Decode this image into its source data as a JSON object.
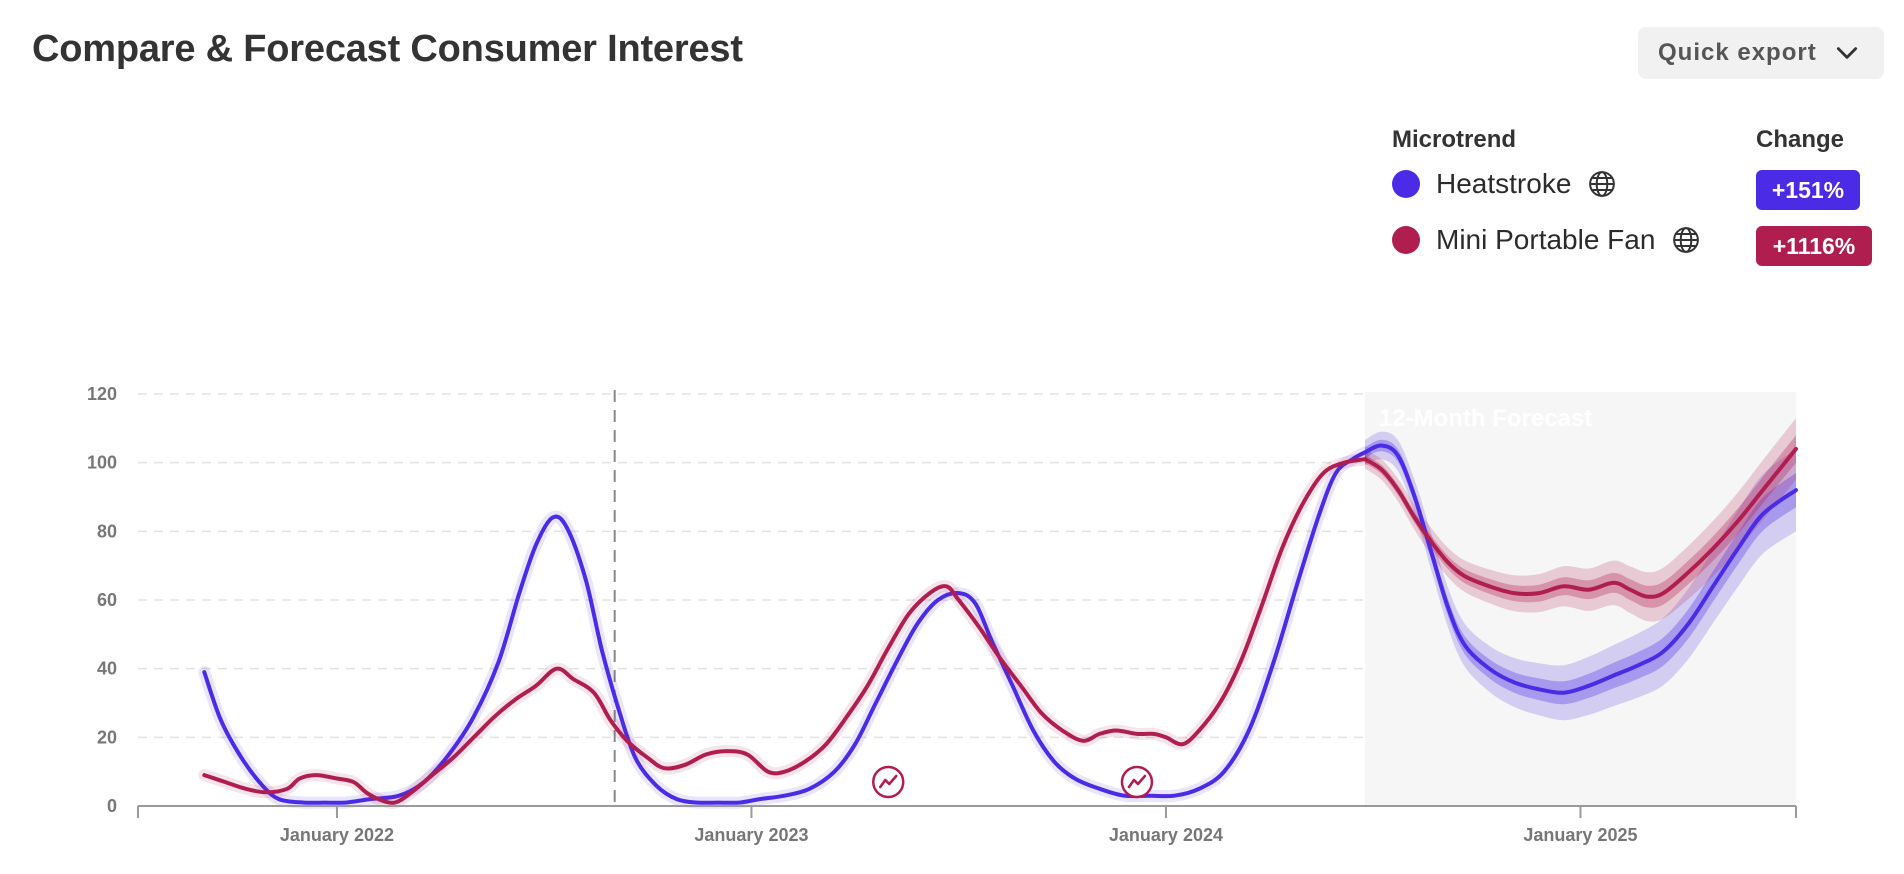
{
  "header": {
    "title": "Compare & Forecast Consumer Interest",
    "export_label": "Quick export"
  },
  "legend": {
    "microtrend_heading": "Microtrend",
    "change_heading": "Change",
    "items": [
      {
        "name": "Heatstroke",
        "change": "+151%",
        "color": "#4b2be6",
        "icon": "globe-icon"
      },
      {
        "name": "Mini Portable Fan",
        "change": "+1116%",
        "color": "#b01e50",
        "icon": "globe-icon"
      }
    ]
  },
  "chart_data": {
    "type": "line",
    "forecast_label": "12-Month Forecast",
    "forecast_start": 2024.48,
    "reference_line_x": 2022.67,
    "x_range": [
      2021.52,
      2025.52
    ],
    "ylim": [
      0,
      120
    ],
    "y_ticks": [
      0,
      20,
      40,
      60,
      80,
      100,
      120
    ],
    "x_ticks": [
      {
        "value": 2022.0,
        "label": "January 2022"
      },
      {
        "value": 2023.0,
        "label": "January 2023"
      },
      {
        "value": 2024.0,
        "label": "January 2024"
      },
      {
        "value": 2025.0,
        "label": "January 2025"
      }
    ],
    "grid": "horizontal dashed",
    "series": [
      {
        "name": "Heatstroke",
        "color": "#4b2be6",
        "points": [
          [
            2021.68,
            39
          ],
          [
            2021.72,
            25
          ],
          [
            2021.77,
            14
          ],
          [
            2021.82,
            6
          ],
          [
            2021.86,
            2
          ],
          [
            2021.92,
            1
          ],
          [
            2021.97,
            1
          ],
          [
            2022.02,
            1
          ],
          [
            2022.08,
            2
          ],
          [
            2022.15,
            3
          ],
          [
            2022.21,
            7
          ],
          [
            2022.27,
            15
          ],
          [
            2022.33,
            26
          ],
          [
            2022.39,
            42
          ],
          [
            2022.44,
            62
          ],
          [
            2022.48,
            76
          ],
          [
            2022.52,
            84
          ],
          [
            2022.555,
            81
          ],
          [
            2022.6,
            66
          ],
          [
            2022.64,
            45
          ],
          [
            2022.68,
            28
          ],
          [
            2022.72,
            14
          ],
          [
            2022.77,
            6
          ],
          [
            2022.82,
            2
          ],
          [
            2022.87,
            1
          ],
          [
            2022.92,
            1
          ],
          [
            2022.97,
            1
          ],
          [
            2023.02,
            2
          ],
          [
            2023.08,
            3
          ],
          [
            2023.14,
            5
          ],
          [
            2023.2,
            10
          ],
          [
            2023.25,
            18
          ],
          [
            2023.3,
            30
          ],
          [
            2023.35,
            42
          ],
          [
            2023.4,
            53
          ],
          [
            2023.45,
            60
          ],
          [
            2023.5,
            62
          ],
          [
            2023.54,
            59
          ],
          [
            2023.58,
            48
          ],
          [
            2023.63,
            35
          ],
          [
            2023.68,
            22
          ],
          [
            2023.73,
            13
          ],
          [
            2023.78,
            8
          ],
          [
            2023.84,
            5
          ],
          [
            2023.9,
            3
          ],
          [
            2023.96,
            3
          ],
          [
            2024.02,
            3
          ],
          [
            2024.08,
            5
          ],
          [
            2024.14,
            10
          ],
          [
            2024.2,
            22
          ],
          [
            2024.26,
            42
          ],
          [
            2024.32,
            66
          ],
          [
            2024.37,
            85
          ],
          [
            2024.41,
            97
          ],
          [
            2024.45,
            101
          ],
          [
            2024.48,
            103
          ]
        ],
        "forecast": [
          [
            2024.48,
            103
          ],
          [
            2024.52,
            105
          ],
          [
            2024.56,
            102
          ],
          [
            2024.6,
            90
          ],
          [
            2024.64,
            74
          ],
          [
            2024.68,
            58
          ],
          [
            2024.72,
            47
          ],
          [
            2024.78,
            40
          ],
          [
            2024.84,
            36
          ],
          [
            2024.9,
            34
          ],
          [
            2024.96,
            33
          ],
          [
            2025.02,
            35
          ],
          [
            2025.08,
            38
          ],
          [
            2025.14,
            41
          ],
          [
            2025.2,
            45
          ],
          [
            2025.26,
            53
          ],
          [
            2025.32,
            64
          ],
          [
            2025.38,
            75
          ],
          [
            2025.44,
            85
          ],
          [
            2025.52,
            92
          ]
        ],
        "band_inner": 5,
        "band_outer": 12
      },
      {
        "name": "Mini Portable Fan",
        "color": "#b01e50",
        "points": [
          [
            2021.68,
            9
          ],
          [
            2021.73,
            7
          ],
          [
            2021.78,
            5
          ],
          [
            2021.83,
            4
          ],
          [
            2021.88,
            5
          ],
          [
            2021.91,
            8
          ],
          [
            2021.95,
            9
          ],
          [
            2022.0,
            8
          ],
          [
            2022.04,
            7
          ],
          [
            2022.07,
            4
          ],
          [
            2022.1,
            2
          ],
          [
            2022.14,
            1
          ],
          [
            2022.18,
            4
          ],
          [
            2022.23,
            9
          ],
          [
            2022.28,
            14
          ],
          [
            2022.33,
            20
          ],
          [
            2022.38,
            26
          ],
          [
            2022.43,
            31
          ],
          [
            2022.48,
            35
          ],
          [
            2022.53,
            40
          ],
          [
            2022.57,
            37
          ],
          [
            2022.62,
            33
          ],
          [
            2022.66,
            25
          ],
          [
            2022.7,
            19
          ],
          [
            2022.75,
            14
          ],
          [
            2022.79,
            11
          ],
          [
            2022.84,
            12
          ],
          [
            2022.89,
            15
          ],
          [
            2022.94,
            16
          ],
          [
            2022.99,
            15
          ],
          [
            2023.04,
            10
          ],
          [
            2023.08,
            10
          ],
          [
            2023.13,
            13
          ],
          [
            2023.18,
            18
          ],
          [
            2023.23,
            26
          ],
          [
            2023.28,
            35
          ],
          [
            2023.33,
            46
          ],
          [
            2023.38,
            56
          ],
          [
            2023.43,
            62
          ],
          [
            2023.47,
            64
          ],
          [
            2023.5,
            60
          ],
          [
            2023.55,
            52
          ],
          [
            2023.6,
            43
          ],
          [
            2023.65,
            35
          ],
          [
            2023.7,
            27
          ],
          [
            2023.75,
            22
          ],
          [
            2023.8,
            19
          ],
          [
            2023.84,
            21
          ],
          [
            2023.88,
            22
          ],
          [
            2023.93,
            21
          ],
          [
            2023.97,
            21
          ],
          [
            2024.0,
            20
          ],
          [
            2024.04,
            18
          ],
          [
            2024.08,
            22
          ],
          [
            2024.13,
            30
          ],
          [
            2024.18,
            42
          ],
          [
            2024.23,
            58
          ],
          [
            2024.28,
            75
          ],
          [
            2024.33,
            88
          ],
          [
            2024.38,
            97
          ],
          [
            2024.43,
            100
          ],
          [
            2024.48,
            101
          ]
        ],
        "forecast": [
          [
            2024.48,
            101
          ],
          [
            2024.52,
            98
          ],
          [
            2024.56,
            92
          ],
          [
            2024.6,
            84
          ],
          [
            2024.64,
            77
          ],
          [
            2024.68,
            71
          ],
          [
            2024.72,
            67
          ],
          [
            2024.78,
            64
          ],
          [
            2024.84,
            62
          ],
          [
            2024.9,
            62
          ],
          [
            2024.96,
            64
          ],
          [
            2025.02,
            63
          ],
          [
            2025.08,
            65
          ],
          [
            2025.12,
            63
          ],
          [
            2025.16,
            61
          ],
          [
            2025.2,
            62
          ],
          [
            2025.26,
            68
          ],
          [
            2025.32,
            75
          ],
          [
            2025.38,
            83
          ],
          [
            2025.44,
            92
          ],
          [
            2025.52,
            104
          ]
        ],
        "band_inner": 4,
        "band_outer": 9
      }
    ],
    "markers": [
      {
        "x": 2023.33,
        "y": 7,
        "color": "#b01e50",
        "icon": "trend-marker-icon"
      },
      {
        "x": 2023.93,
        "y": 7,
        "color": "#b01e50",
        "icon": "trend-marker-icon"
      }
    ]
  }
}
